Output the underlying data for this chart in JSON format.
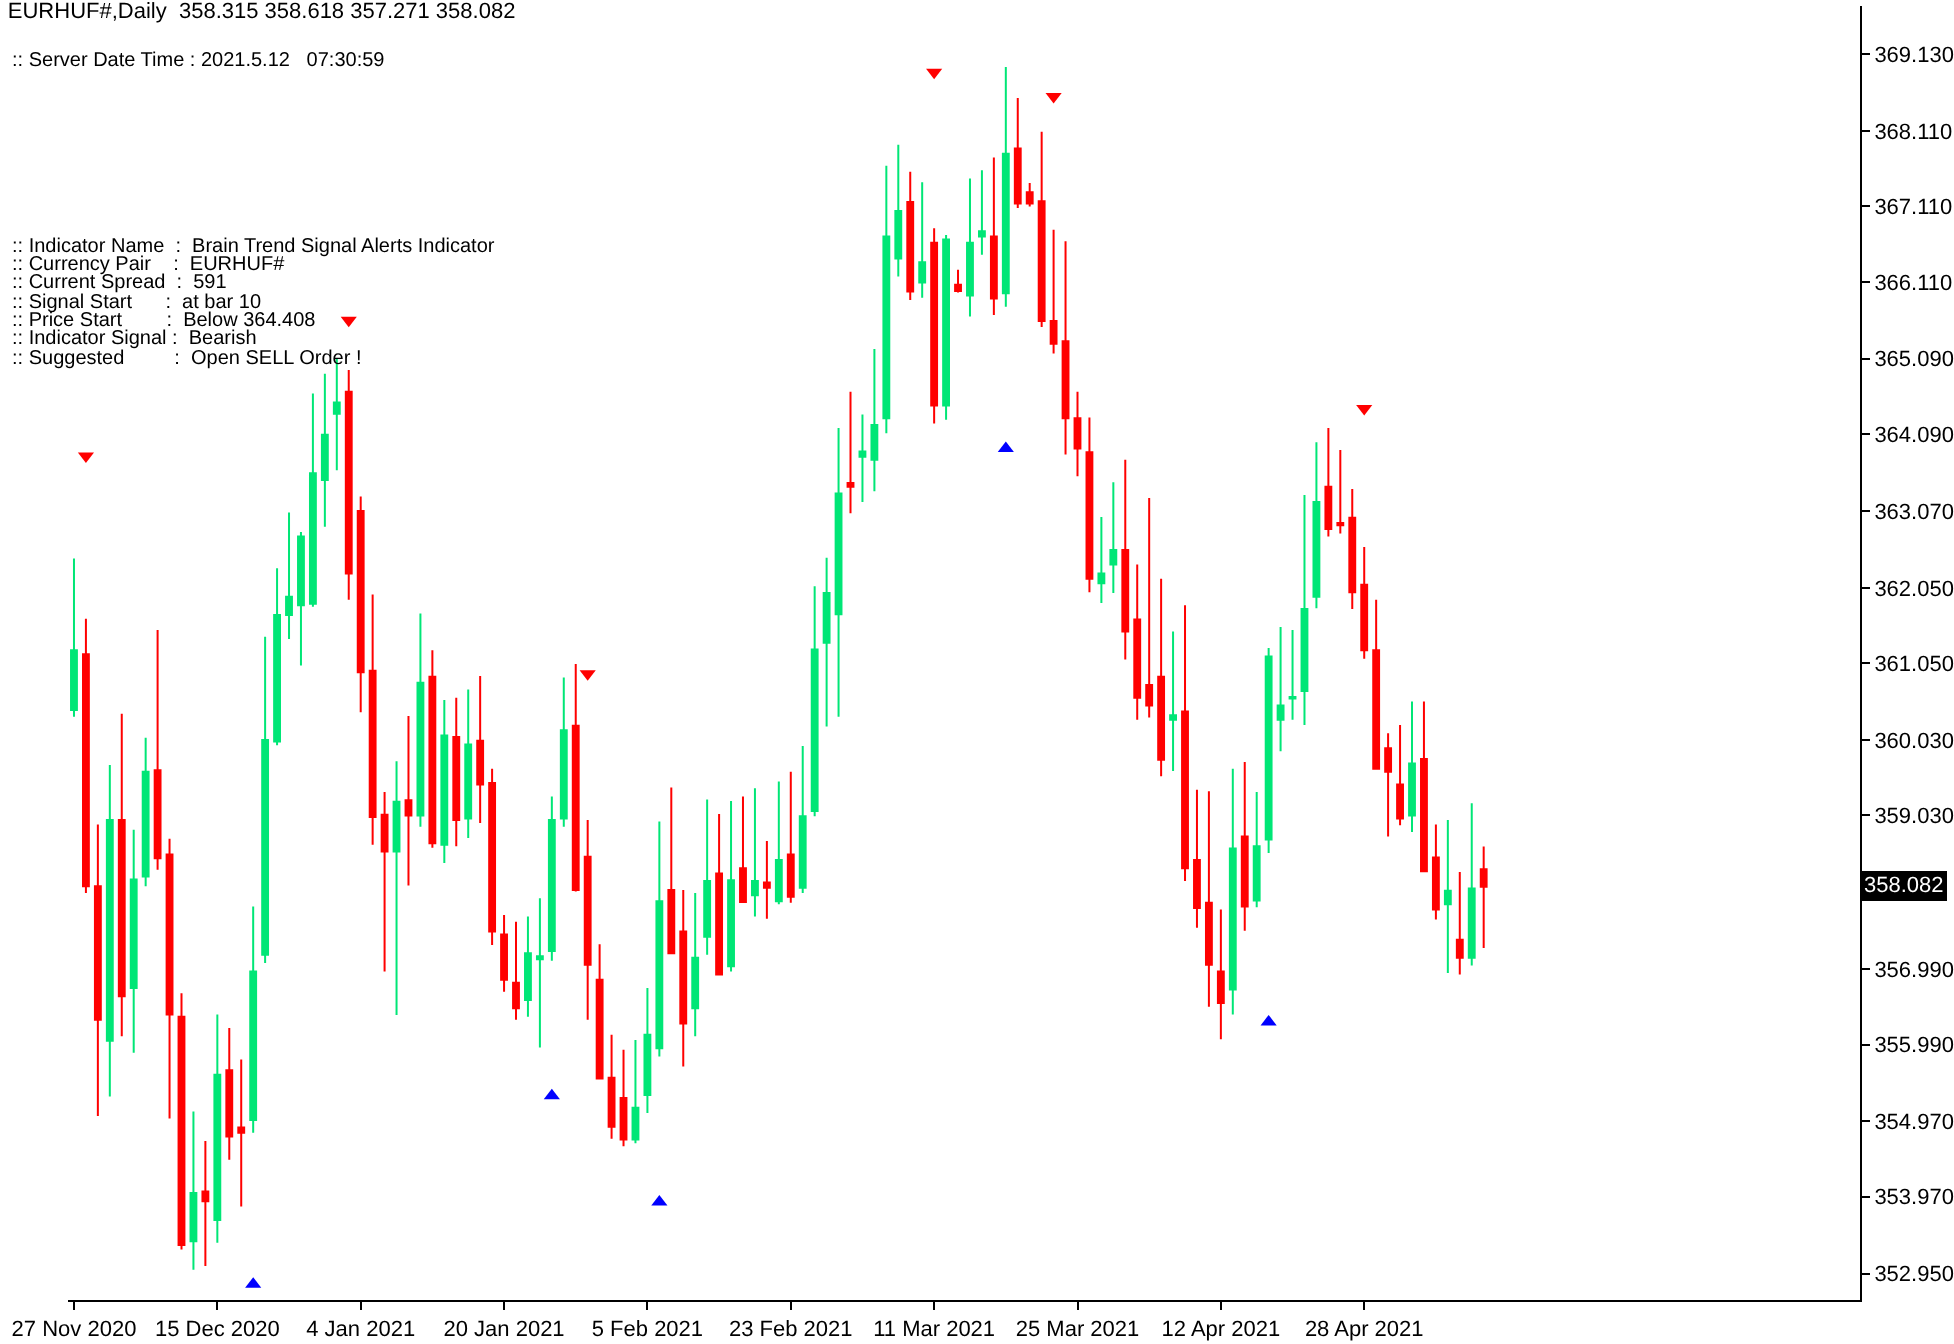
{
  "chart_data": {
    "type": "candlestick",
    "title": "EURHUF#,Daily  358.315 358.618 357.271 358.082",
    "annotations": [
      ":: Server Date Time : 2021.5.12   07:30:59",
      ":: Indicator Name  :  Brain Trend Signal Alerts Indicator",
      ":: Currency Pair    :  EURHUF#",
      ":: Current Spread  :  591",
      ":: Signal Start      :  at bar 10",
      ":: Price Start        :  Below 364.408",
      ":: Indicator Signal :  Bearish",
      ":: Suggested         :  Open SELL Order !",
      {
        "text": "358.082",
        "y": 358.082
      }
    ],
    "categories": [
      "27 Nov 2020",
      null,
      null,
      null,
      null,
      null,
      null,
      null,
      null,
      null,
      null,
      null,
      "15 Dec 2020",
      null,
      null,
      null,
      null,
      null,
      null,
      null,
      null,
      null,
      null,
      null,
      "4 Jan 2021",
      null,
      null,
      null,
      null,
      null,
      null,
      null,
      null,
      null,
      null,
      null,
      "20 Jan 2021",
      null,
      null,
      null,
      null,
      null,
      null,
      null,
      null,
      null,
      null,
      null,
      "5 Feb 2021",
      null,
      null,
      null,
      null,
      null,
      null,
      null,
      null,
      null,
      null,
      null,
      "23 Feb 2021",
      null,
      null,
      null,
      null,
      null,
      null,
      null,
      null,
      null,
      null,
      null,
      "11 Mar 2021",
      null,
      null,
      null,
      null,
      null,
      null,
      null,
      null,
      null,
      null,
      null,
      "25 Mar 2021",
      null,
      null,
      null,
      null,
      null,
      null,
      null,
      null,
      null,
      null,
      null,
      "12 Apr 2021",
      null,
      null,
      null,
      null,
      null,
      null,
      null,
      null,
      null,
      null,
      null,
      "28 Apr 2021",
      null,
      null,
      null,
      null,
      null,
      null,
      null,
      null,
      null,
      null,
      null,
      null,
      null,
      null,
      null,
      null,
      null,
      null,
      null,
      null,
      null,
      null,
      null,
      null,
      null,
      null,
      null,
      null,
      null,
      null,
      null,
      null,
      null,
      null,
      null,
      null,
      null,
      null,
      null,
      null,
      null
    ],
    "ylim": [
      352.6,
      369.77
    ],
    "yticks": [
      {
        "value": 369.13,
        "label": "369.130"
      },
      {
        "value": 368.11,
        "label": "368.110"
      },
      {
        "value": 367.11,
        "label": "367.110"
      },
      {
        "value": 366.11,
        "label": "366.110"
      },
      {
        "value": 365.09,
        "label": "365.090"
      },
      {
        "value": 364.09,
        "label": "364.090"
      },
      {
        "value": 363.07,
        "label": "363.070"
      },
      {
        "value": 362.05,
        "label": "362.050"
      },
      {
        "value": 361.05,
        "label": "361.050"
      },
      {
        "value": 360.03,
        "label": "360.030"
      },
      {
        "value": 359.03,
        "label": "359.030"
      },
      {
        "value": 356.99,
        "label": "356.990"
      },
      {
        "value": 355.99,
        "label": "355.990"
      },
      {
        "value": 354.97,
        "label": "354.970"
      },
      {
        "value": 353.97,
        "label": "353.970"
      },
      {
        "value": 352.95,
        "label": "352.950"
      }
    ],
    "grid": false,
    "series": [
      {
        "ohlc": [
          [
            360.43,
            362.44,
            360.34,
            361.22
          ],
          [
            361.17,
            361.64,
            358.0,
            358.09
          ],
          [
            358.09,
            358.91,
            355.04,
            356.32
          ],
          [
            356.04,
            359.7,
            355.3,
            358.97
          ],
          [
            358.97,
            360.38,
            356.1,
            356.63
          ],
          [
            356.74,
            358.84,
            355.88,
            358.18
          ],
          [
            358.22,
            360.06,
            358.09,
            359.61
          ],
          [
            359.63,
            361.49,
            358.31,
            358.46
          ],
          [
            358.51,
            358.72,
            355.01,
            356.39
          ],
          [
            356.36,
            356.67,
            353.27,
            353.33
          ],
          [
            353.38,
            355.1,
            353.0,
            354.02
          ],
          [
            354.04,
            354.71,
            353.05,
            353.91
          ],
          [
            353.66,
            356.39,
            353.36,
            355.59
          ],
          [
            355.65,
            356.21,
            354.46,
            354.77
          ],
          [
            354.89,
            355.79,
            353.84,
            354.82
          ],
          [
            354.99,
            357.82,
            354.82,
            356.96
          ],
          [
            357.18,
            361.4,
            357.07,
            360.03
          ],
          [
            360.01,
            362.31,
            359.96,
            361.69
          ],
          [
            361.69,
            363.05,
            361.37,
            361.93
          ],
          [
            361.82,
            362.79,
            361.02,
            362.73
          ],
          [
            361.84,
            364.63,
            361.8,
            363.57
          ],
          [
            363.48,
            364.89,
            362.86,
            364.08
          ],
          [
            364.36,
            365.1,
            363.61,
            364.51
          ],
          [
            364.65,
            364.94,
            361.89,
            362.24
          ],
          [
            363.07,
            363.26,
            360.4,
            360.93
          ],
          [
            360.95,
            361.96,
            358.64,
            359.01
          ],
          [
            359.04,
            359.34,
            356.96,
            358.55
          ],
          [
            358.55,
            359.75,
            356.38,
            359.21
          ],
          [
            359.23,
            360.35,
            358.1,
            359.03
          ],
          [
            359.03,
            361.71,
            358.88,
            360.79
          ],
          [
            360.87,
            361.22,
            358.6,
            358.66
          ],
          [
            358.64,
            360.56,
            358.4,
            360.09
          ],
          [
            360.07,
            360.59,
            358.62,
            358.97
          ],
          [
            358.99,
            360.7,
            358.73,
            359.97
          ],
          [
            360.02,
            360.88,
            358.93,
            359.44
          ],
          [
            359.46,
            359.65,
            357.31,
            357.49
          ],
          [
            357.45,
            357.71,
            356.69,
            356.85
          ],
          [
            356.81,
            357.62,
            356.32,
            356.47
          ],
          [
            356.58,
            357.69,
            356.36,
            357.2
          ],
          [
            357.12,
            357.93,
            355.95,
            357.16
          ],
          [
            357.23,
            359.28,
            357.1,
            358.97
          ],
          [
            358.99,
            360.86,
            358.88,
            360.16
          ],
          [
            360.22,
            361.04,
            358.02,
            358.04
          ],
          [
            358.48,
            358.97,
            356.32,
            357.05
          ],
          [
            356.85,
            357.32,
            355.54,
            355.54
          ],
          [
            355.55,
            356.12,
            354.74,
            354.9
          ],
          [
            355.28,
            355.92,
            354.64,
            354.73
          ],
          [
            354.73,
            356.05,
            354.68,
            355.15
          ],
          [
            355.32,
            356.74,
            355.08,
            356.12
          ],
          [
            355.94,
            358.95,
            355.83,
            357.89
          ],
          [
            358.04,
            359.4,
            357.2,
            357.2
          ],
          [
            357.49,
            358.04,
            355.7,
            356.27
          ],
          [
            356.47,
            358.0,
            356.1,
            357.14
          ],
          [
            357.42,
            359.24,
            357.18,
            358.16
          ],
          [
            358.26,
            359.05,
            356.92,
            356.92
          ],
          [
            357.03,
            359.22,
            356.96,
            358.17
          ],
          [
            358.33,
            359.28,
            357.88,
            357.88
          ],
          [
            357.97,
            359.39,
            357.69,
            358.16
          ],
          [
            358.14,
            358.69,
            357.66,
            358.07
          ],
          [
            357.89,
            359.48,
            357.85,
            358.44
          ],
          [
            358.51,
            359.61,
            357.87,
            357.95
          ],
          [
            358.07,
            359.95,
            358.0,
            359.02
          ],
          [
            359.09,
            362.07,
            359.02,
            361.23
          ],
          [
            361.32,
            362.45,
            360.21,
            361.98
          ],
          [
            361.7,
            364.17,
            360.34,
            363.3
          ],
          [
            363.44,
            364.65,
            363.04,
            363.39
          ],
          [
            363.79,
            364.35,
            363.19,
            363.86
          ],
          [
            363.75,
            365.22,
            363.33,
            364.21
          ],
          [
            364.3,
            367.65,
            364.1,
            366.71
          ],
          [
            366.42,
            367.93,
            366.18,
            367.05
          ],
          [
            367.17,
            367.57,
            365.87,
            365.98
          ],
          [
            366.1,
            367.43,
            365.9,
            366.37
          ],
          [
            366.63,
            366.82,
            364.23,
            364.47
          ],
          [
            364.47,
            366.73,
            364.28,
            366.67
          ],
          [
            366.07,
            366.27,
            365.97,
            365.99
          ],
          [
            365.93,
            367.48,
            365.65,
            366.63
          ],
          [
            366.71,
            367.59,
            366.47,
            366.78
          ],
          [
            366.71,
            367.76,
            365.67,
            365.89
          ],
          [
            365.96,
            368.96,
            365.78,
            367.81
          ],
          [
            367.88,
            368.55,
            367.09,
            367.15
          ],
          [
            367.3,
            367.42,
            367.11,
            367.15
          ],
          [
            367.18,
            368.1,
            365.51,
            365.59
          ],
          [
            365.59,
            366.8,
            365.16,
            365.29
          ],
          [
            365.32,
            366.65,
            363.82,
            364.3
          ],
          [
            364.3,
            364.65,
            363.53,
            363.9
          ],
          [
            363.85,
            364.31,
            361.99,
            362.17
          ],
          [
            362.11,
            362.99,
            361.85,
            362.24
          ],
          [
            362.36,
            363.45,
            361.98,
            362.55
          ],
          [
            362.55,
            363.75,
            361.1,
            361.47
          ],
          [
            361.63,
            362.36,
            360.3,
            360.59
          ],
          [
            360.76,
            363.24,
            360.33,
            360.49
          ],
          [
            360.87,
            362.17,
            359.55,
            359.77
          ],
          [
            360.3,
            361.47,
            359.62,
            360.36
          ],
          [
            360.41,
            361.82,
            358.16,
            358.33
          ],
          [
            358.44,
            359.37,
            357.54,
            357.8
          ],
          [
            357.87,
            359.35,
            356.49,
            357.05
          ],
          [
            356.96,
            357.78,
            356.06,
            356.54
          ],
          [
            356.72,
            359.65,
            356.39,
            358.59
          ],
          [
            358.75,
            359.74,
            357.5,
            357.82
          ],
          [
            357.9,
            359.34,
            357.81,
            358.62
          ],
          [
            358.71,
            361.25,
            358.53,
            361.14
          ],
          [
            360.3,
            361.53,
            359.88,
            360.49
          ],
          [
            360.58,
            361.49,
            360.3,
            360.6
          ],
          [
            360.68,
            363.28,
            360.23,
            361.77
          ],
          [
            361.93,
            363.98,
            361.78,
            363.19
          ],
          [
            363.39,
            364.17,
            362.73,
            362.83
          ],
          [
            362.91,
            363.88,
            362.77,
            362.88
          ],
          [
            362.98,
            363.36,
            361.77,
            361.99
          ],
          [
            362.09,
            362.59,
            361.11,
            361.22
          ],
          [
            361.22,
            361.89,
            359.65,
            359.65
          ],
          [
            359.92,
            360.12,
            358.75,
            359.61
          ],
          [
            359.44,
            360.23,
            358.9,
            358.99
          ],
          [
            359.03,
            360.54,
            358.81,
            359.72
          ],
          [
            359.78,
            360.54,
            358.29,
            358.29
          ],
          [
            358.47,
            358.91,
            357.65,
            357.78
          ],
          [
            357.85,
            358.97,
            356.94,
            358.03
          ],
          [
            357.38,
            358.28,
            356.92,
            357.14
          ],
          [
            357.14,
            359.19,
            357.04,
            358.06
          ],
          [
            358.315,
            358.618,
            357.271,
            358.082
          ],
          null,
          null,
          null,
          null,
          null,
          null,
          null,
          null,
          null,
          null,
          null,
          null,
          null,
          null,
          null,
          null,
          null,
          null,
          null,
          null,
          null,
          null,
          null,
          null,
          null,
          null,
          null,
          null,
          null,
          null,
          null
        ],
        "colors": [
          "#00e676",
          "#ff0000",
          "#ff0000",
          "#00e676",
          "#ff0000",
          "#00e676",
          "#00e676",
          "#ff0000",
          "#ff0000",
          "#ff0000",
          "#00e676",
          "#ff0000",
          "#00e676",
          "#ff0000",
          "#ff0000",
          "#00e676",
          "#00e676",
          "#00e676",
          "#00e676",
          "#00e676",
          "#00e676",
          "#00e676",
          "#00e676",
          "#ff0000",
          "#ff0000",
          "#ff0000",
          "#ff0000",
          "#00e676",
          "#ff0000",
          "#00e676",
          "#ff0000",
          "#00e676",
          "#ff0000",
          "#00e676",
          "#ff0000",
          "#ff0000",
          "#ff0000",
          "#ff0000",
          "#00e676",
          "#00e676",
          "#00e676",
          "#00e676",
          "#ff0000",
          "#ff0000",
          "#ff0000",
          "#ff0000",
          "#ff0000",
          "#00e676",
          "#00e676",
          "#00e676",
          "#ff0000",
          "#ff0000",
          "#00e676",
          "#00e676",
          "#ff0000",
          "#00e676",
          "#ff0000",
          "#00e676",
          "#ff0000",
          "#00e676",
          "#ff0000",
          "#00e676",
          "#00e676",
          "#00e676",
          "#00e676",
          "#ff0000",
          "#00e676",
          "#00e676",
          "#00e676",
          "#00e676",
          "#ff0000",
          "#00e676",
          "#ff0000",
          "#00e676",
          "#ff0000",
          "#00e676",
          "#00e676",
          "#ff0000",
          "#00e676",
          "#ff0000",
          "#ff0000",
          "#ff0000",
          "#ff0000",
          "#ff0000",
          "#ff0000",
          "#ff0000",
          "#00e676",
          "#00e676",
          "#ff0000",
          "#ff0000",
          "#ff0000",
          "#ff0000",
          "#00e676",
          "#ff0000",
          "#ff0000",
          "#ff0000",
          "#ff0000",
          "#00e676",
          "#ff0000",
          "#00e676",
          "#00e676",
          "#00e676",
          "#00e676",
          "#00e676",
          "#00e676",
          "#ff0000",
          "#ff0000",
          "#ff0000",
          "#ff0000",
          "#ff0000",
          "#ff0000",
          "#ff0000",
          "#00e676",
          "#ff0000",
          "#ff0000",
          "#00e676",
          "#ff0000",
          "#00e676",
          "#ff0000",
          null,
          null,
          null,
          null,
          null,
          null,
          null,
          null,
          null,
          null,
          null,
          null,
          null,
          null,
          null,
          null,
          null,
          null,
          null,
          null,
          null,
          null,
          null,
          null,
          null,
          null,
          null,
          null,
          null,
          null,
          null
        ]
      },
      {
        "type": "scatter",
        "color": "#ff0000",
        "marker": "triangle",
        "values": [
          null,
          363.8,
          null,
          null,
          null,
          null,
          null,
          null,
          null,
          null,
          null,
          null,
          null,
          null,
          null,
          null,
          null,
          null,
          null,
          null,
          null,
          null,
          null,
          365.6,
          null,
          null,
          null,
          null,
          null,
          null,
          null,
          null,
          null,
          null,
          null,
          null,
          null,
          null,
          null,
          null,
          null,
          null,
          null,
          360.91,
          null,
          null,
          null,
          null,
          null,
          null,
          null,
          null,
          null,
          null,
          null,
          null,
          null,
          null,
          null,
          null,
          null,
          null,
          null,
          null,
          null,
          null,
          null,
          null,
          null,
          null,
          null,
          null,
          368.89,
          null,
          null,
          null,
          null,
          null,
          null,
          null,
          null,
          null,
          368.57,
          null,
          null,
          null,
          null,
          null,
          null,
          null,
          null,
          null,
          null,
          null,
          null,
          null,
          null,
          null,
          null,
          null,
          null,
          null,
          null,
          null,
          null,
          null,
          null,
          null,
          364.43,
          null,
          null,
          null,
          null,
          null,
          null,
          null,
          null,
          null,
          null,
          null,
          null,
          null,
          null,
          null,
          null,
          null,
          null,
          null,
          null,
          null,
          null,
          null,
          null,
          null,
          null,
          null,
          null,
          null,
          null,
          null,
          null,
          null,
          null,
          null,
          null,
          null,
          null,
          null,
          null,
          null
        ]
      },
      {
        "type": "scatter",
        "color": "#0000ff",
        "marker": "triangle",
        "values": [
          null,
          null,
          null,
          null,
          null,
          null,
          null,
          null,
          null,
          null,
          null,
          null,
          null,
          null,
          null,
          352.81,
          null,
          null,
          null,
          null,
          null,
          null,
          null,
          null,
          null,
          null,
          null,
          null,
          null,
          null,
          null,
          null,
          null,
          null,
          null,
          null,
          null,
          null,
          null,
          null,
          355.31,
          null,
          null,
          null,
          null,
          null,
          null,
          null,
          null,
          353.9,
          null,
          null,
          null,
          null,
          null,
          null,
          null,
          null,
          null,
          null,
          null,
          null,
          null,
          null,
          null,
          null,
          null,
          null,
          null,
          null,
          null,
          null,
          null,
          null,
          null,
          null,
          null,
          null,
          363.9,
          null,
          null,
          null,
          null,
          null,
          null,
          null,
          null,
          null,
          null,
          null,
          null,
          null,
          null,
          null,
          null,
          null,
          null,
          null,
          null,
          null,
          356.29,
          null,
          null,
          null,
          null,
          null,
          null,
          null,
          null,
          null,
          null,
          null,
          null,
          null,
          null,
          null,
          null,
          null,
          null,
          null,
          null,
          null,
          null,
          null,
          null,
          null,
          null,
          null,
          null,
          null,
          null,
          null,
          null,
          null,
          null,
          null,
          null,
          null,
          null,
          null,
          null,
          null,
          null,
          null,
          null,
          null,
          null,
          null,
          null,
          null
        ]
      }
    ]
  }
}
